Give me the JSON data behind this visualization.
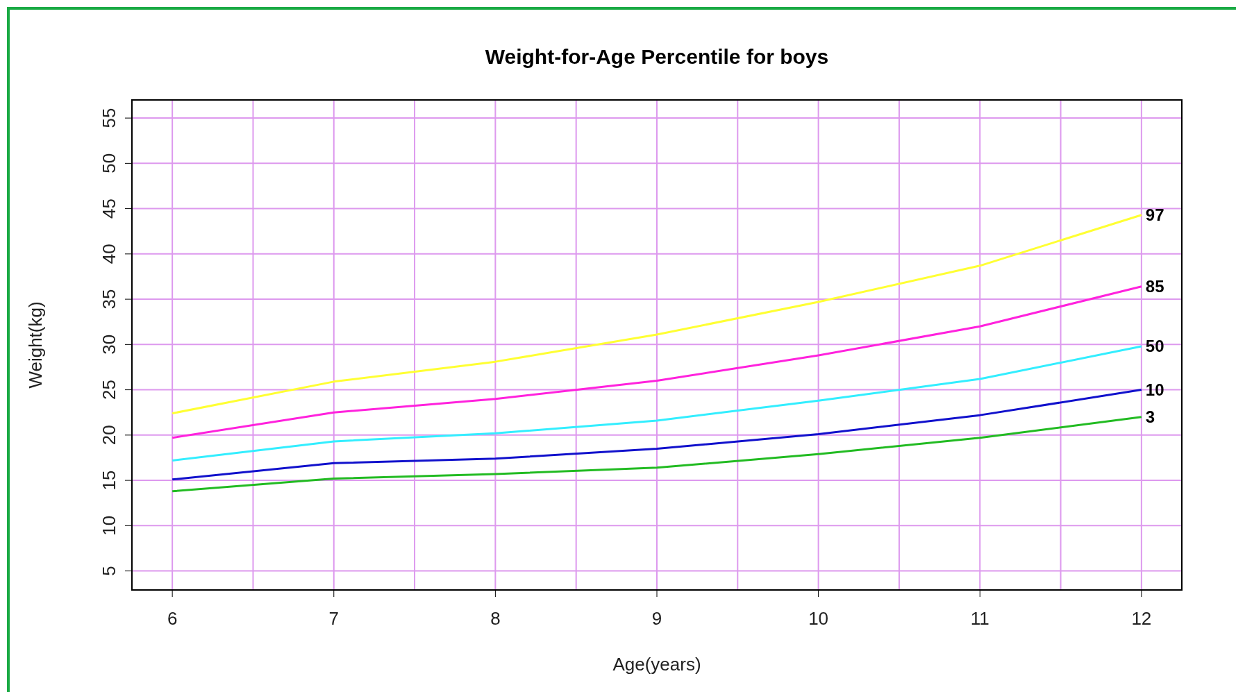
{
  "chart_data": {
    "type": "line",
    "title": "Weight-for-Age Percentile for boys",
    "xlabel": "Age(years)",
    "ylabel": "Weight(kg)",
    "x": [
      6,
      7,
      8,
      9,
      10,
      11,
      12
    ],
    "series": [
      {
        "name": "97",
        "color": "#ffff33",
        "values": [
          22.4,
          25.9,
          28.1,
          31.1,
          34.7,
          38.7,
          44.3
        ]
      },
      {
        "name": "85",
        "color": "#ff22dd",
        "values": [
          19.7,
          22.5,
          24,
          26,
          28.8,
          32,
          36.4
        ]
      },
      {
        "name": "50",
        "color": "#33eeff",
        "values": [
          17.2,
          19.3,
          20.2,
          21.6,
          23.8,
          26.2,
          29.8
        ]
      },
      {
        "name": "10",
        "color": "#1111cc",
        "values": [
          15.1,
          16.9,
          17.4,
          18.5,
          20.1,
          22.2,
          25
        ]
      },
      {
        "name": "3",
        "color": "#22bb22",
        "values": [
          13.8,
          15.2,
          15.7,
          16.4,
          17.9,
          19.7,
          22
        ]
      }
    ],
    "xlim": [
      5.75,
      12.25
    ],
    "ylim": [
      2.9,
      57
    ],
    "xticks": [
      6,
      {
        "value": 6.5,
        "label": null
      },
      7,
      {
        "value": 7.5,
        "label": null
      },
      8,
      {
        "value": 8.5,
        "label": null
      },
      9,
      {
        "value": 9.5,
        "label": null
      },
      10,
      {
        "value": 10.5,
        "label": null
      },
      11,
      {
        "value": 11.5,
        "label": null
      },
      12
    ],
    "yticks": [
      5,
      10,
      15,
      20,
      25,
      30,
      35,
      40,
      45,
      50,
      55
    ],
    "grid": true,
    "marker": "none",
    "line_style": "solid"
  }
}
